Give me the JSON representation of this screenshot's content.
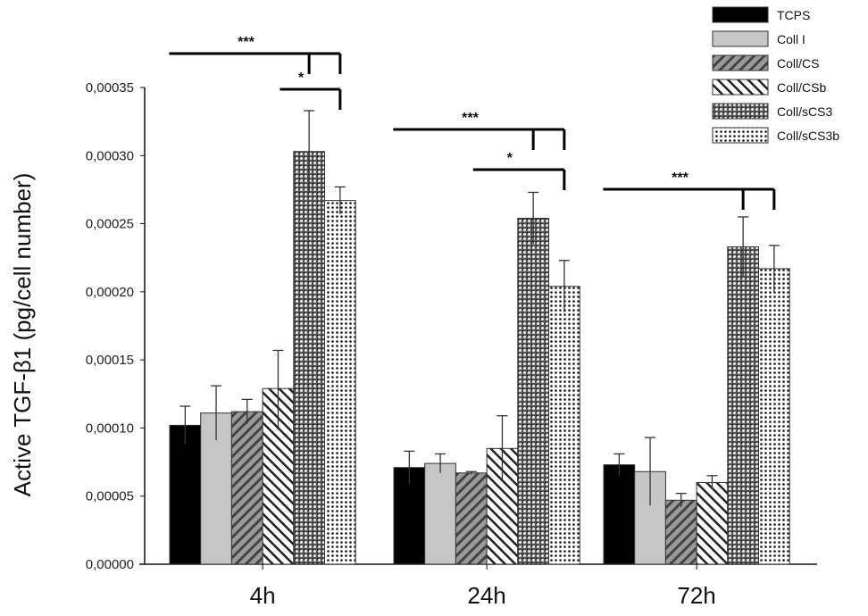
{
  "chart_data": {
    "type": "bar",
    "title": "",
    "xlabel": "",
    "ylabel": "Active TGF-β1 (pg/cell number)",
    "ylim": [
      0,
      0.00035
    ],
    "yticks": [
      "0,00000",
      "0,00005",
      "0,00010",
      "0,00015",
      "0,00020",
      "0,00025",
      "0,00030",
      "0,00035"
    ],
    "categories": [
      "4h",
      "24h",
      "72h"
    ],
    "legend_position": "top-right",
    "series": [
      {
        "name": "TCPS",
        "values": [
          0.000102,
          7.1e-05,
          7.3e-05
        ],
        "errors": [
          1.4e-05,
          1.2e-05,
          8e-06
        ],
        "fill": "solid-black"
      },
      {
        "name": "Coll I",
        "values": [
          0.000111,
          7.4e-05,
          6.8e-05
        ],
        "errors": [
          2e-05,
          7e-06,
          2.5e-05
        ],
        "fill": "solid-gray"
      },
      {
        "name": "Coll/CS",
        "values": [
          0.000112,
          6.7e-05,
          4.7e-05
        ],
        "errors": [
          9e-06,
          1e-06,
          5e-06
        ],
        "fill": "gray-hatch"
      },
      {
        "name": "Coll/CSb",
        "values": [
          0.000129,
          8.5e-05,
          6e-05
        ],
        "errors": [
          2.8e-05,
          2.4e-05,
          5e-06
        ],
        "fill": "white-hatch"
      },
      {
        "name": "Coll/sCS3",
        "values": [
          0.000303,
          0.000254,
          0.000233
        ],
        "errors": [
          3e-05,
          1.9e-05,
          2.2e-05
        ],
        "fill": "dark-dots"
      },
      {
        "name": "Coll/sCS3b",
        "values": [
          0.000267,
          0.000204,
          0.000217
        ],
        "errors": [
          1e-05,
          1.9e-05,
          1.7e-05
        ],
        "fill": "light-dots"
      }
    ],
    "annotations": [
      {
        "group": "4h",
        "label": "***",
        "from": "TCPS",
        "to": [
          "Coll/sCS3",
          "Coll/sCS3b"
        ]
      },
      {
        "group": "4h",
        "label": "*",
        "from": "Coll/CSb",
        "to": [
          "Coll/sCS3b"
        ]
      },
      {
        "group": "24h",
        "label": "***",
        "from": "TCPS",
        "to": [
          "Coll/sCS3",
          "Coll/sCS3b"
        ]
      },
      {
        "group": "24h",
        "label": "*",
        "from": "Coll/CS",
        "to": [
          "Coll/sCS3b"
        ]
      },
      {
        "group": "72h",
        "label": "***",
        "from": "TCPS",
        "to": [
          "Coll/sCS3",
          "Coll/sCS3b"
        ]
      }
    ]
  }
}
